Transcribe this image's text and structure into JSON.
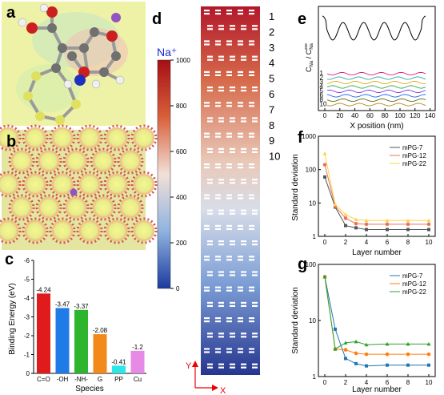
{
  "panels": {
    "a": {
      "label": "a"
    },
    "b": {
      "label": "b"
    },
    "c": {
      "label": "c"
    },
    "d": {
      "label": "d"
    },
    "e": {
      "label": "e"
    },
    "f": {
      "label": "f"
    },
    "g": {
      "label": "g"
    }
  },
  "colors": {
    "red": "#e01b1b",
    "blue": "#1f7be6",
    "green": "#2db52d",
    "orange": "#f28a1b",
    "cyan": "#2ee6e6",
    "violet": "#e68ae6",
    "s7": "#1f77b4",
    "s12": "#ff7f0e",
    "s22": "#2ca02c",
    "f7": "#555555",
    "f12": "#e8735a",
    "f22": "#ffd24d"
  },
  "chart_data": [
    {
      "id": "c",
      "type": "bar",
      "categories": [
        "C=O",
        "-OH",
        "-NH-",
        "G",
        "PP",
        "Cu"
      ],
      "values": [
        -4.24,
        -3.47,
        -3.37,
        -2.08,
        -0.41,
        -1.2
      ],
      "value_labels": [
        "-4.24",
        "-3.47",
        "-3.37",
        "-2.08",
        "-0.41",
        "-1.2"
      ],
      "xlabel": "Species",
      "ylabel": "Binding Energy (eV)",
      "ylim": [
        0,
        -6
      ],
      "yticks": [
        "0",
        "-1",
        "-2",
        "-3",
        "-4",
        "-5",
        "-6"
      ]
    },
    {
      "id": "d",
      "type": "heatmap",
      "colorbar_title": "Na⁺",
      "colorbar_ticks": [
        "1000",
        "800",
        "600",
        "400",
        "200",
        "0"
      ],
      "layer_labels": [
        "1",
        "2",
        "3",
        "4",
        "5",
        "6",
        "7",
        "8",
        "9",
        "10"
      ],
      "axis_y": "Y",
      "axis_x": "X"
    },
    {
      "id": "e",
      "type": "line",
      "xlabel": "X position (nm)",
      "ylabel": "C_Na / C_Na^ave",
      "xticks": [
        "0",
        "20",
        "40",
        "60",
        "80",
        "100",
        "120",
        "140"
      ],
      "series_labels": [
        "1",
        "2",
        "3",
        "4",
        "5",
        "6",
        "8",
        "10"
      ]
    },
    {
      "id": "f",
      "type": "line",
      "ylog": true,
      "ylim": [
        1,
        1000
      ],
      "yticks": [
        "1",
        "10",
        "100",
        "1000"
      ],
      "xticks": [
        "0",
        "2",
        "4",
        "6",
        "8",
        "10"
      ],
      "xlabel": "Layer number",
      "ylabel": "Standard deviation",
      "x": [
        0,
        1,
        2,
        3,
        4,
        6,
        8,
        10
      ],
      "series": [
        {
          "name": "mPG-7",
          "values": [
            60,
            7.5,
            2.1,
            1.8,
            1.6,
            1.6,
            1.6,
            1.6
          ]
        },
        {
          "name": "mPG-12",
          "values": [
            140,
            8,
            3.5,
            2.4,
            2.3,
            2.3,
            2.3,
            2.3
          ]
        },
        {
          "name": "mPG-22",
          "values": [
            300,
            9,
            4.5,
            3.2,
            3.0,
            3.0,
            3.0,
            3.0
          ]
        }
      ]
    },
    {
      "id": "g",
      "type": "line",
      "ylog": true,
      "ylim": [
        1,
        100
      ],
      "yticks": [
        "1",
        "10",
        "100"
      ],
      "xticks": [
        "0",
        "2",
        "4",
        "6",
        "8",
        "10"
      ],
      "xlabel": "Layer number",
      "ylabel": "Standard deviation",
      "x": [
        0,
        1,
        2,
        3,
        4,
        6,
        8,
        10
      ],
      "series": [
        {
          "name": "mPG-7",
          "values": [
            60,
            7,
            2.1,
            1.7,
            1.55,
            1.6,
            1.6,
            1.6
          ]
        },
        {
          "name": "mPG-12",
          "values": [
            60,
            3.1,
            3.0,
            2.6,
            2.5,
            2.5,
            2.5,
            2.5
          ]
        },
        {
          "name": "mPG-22",
          "values": [
            60,
            3.1,
            4.0,
            4.2,
            3.7,
            3.8,
            3.8,
            3.8
          ]
        }
      ]
    }
  ]
}
